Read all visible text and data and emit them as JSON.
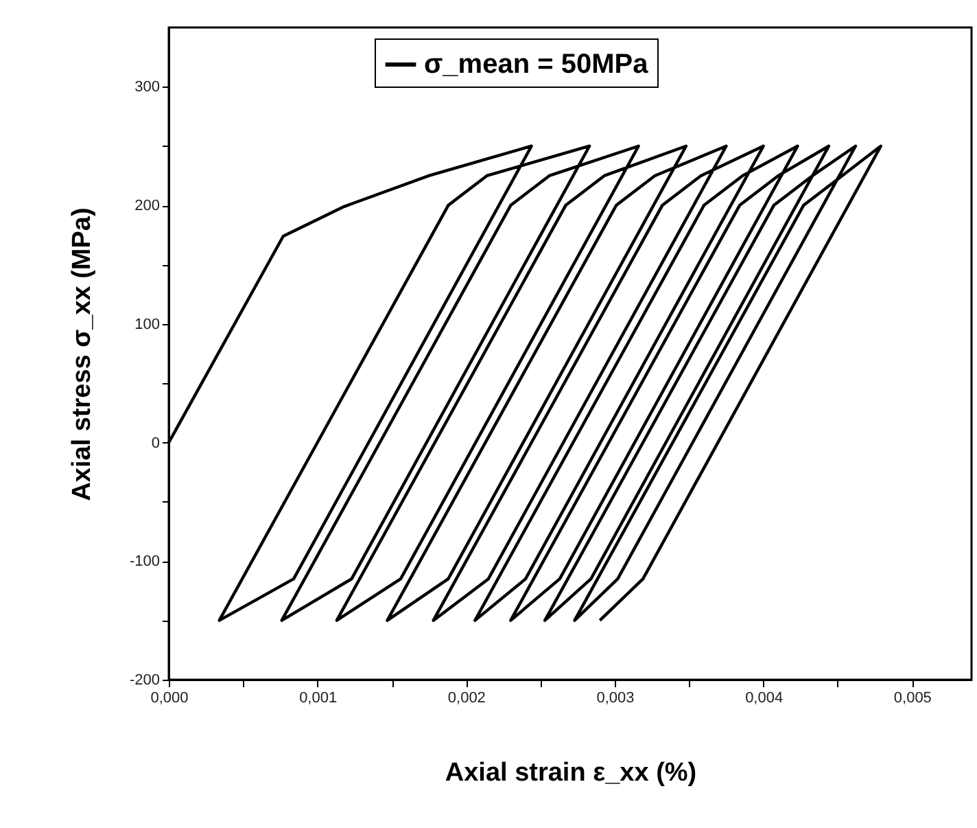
{
  "chart_data": {
    "type": "line",
    "xlabel": "Axial strain  ε_xx (%)",
    "ylabel": "Axial stress σ_xx  (MPa)",
    "xlim": [
      0,
      0.0054
    ],
    "ylim": [
      -200,
      350
    ],
    "xticks": [
      {
        "value": 0,
        "label": "0,000"
      },
      {
        "value": 0.0005,
        "label": null
      },
      {
        "value": 0.001,
        "label": "0,001"
      },
      {
        "value": 0.0015,
        "label": null
      },
      {
        "value": 0.002,
        "label": "0,002"
      },
      {
        "value": 0.0025,
        "label": null
      },
      {
        "value": 0.003,
        "label": "0,003"
      },
      {
        "value": 0.0035,
        "label": null
      },
      {
        "value": 0.004,
        "label": "0,004"
      },
      {
        "value": 0.0045,
        "label": null
      },
      {
        "value": 0.005,
        "label": "0,005"
      }
    ],
    "yticks": [
      -200,
      {
        "value": -150,
        "label": null
      },
      -100,
      {
        "value": -50,
        "label": null
      },
      0,
      {
        "value": 50,
        "label": null
      },
      100,
      {
        "value": 150,
        "label": null
      },
      200,
      {
        "value": 250,
        "label": null
      },
      300
    ],
    "grid": false,
    "legend": "top",
    "marker": "none",
    "line_style": "solid",
    "series": [
      {
        "name": "σ_mean = 50MPa",
        "color": "#000000",
        "x": [
          0,
          0.00077,
          0.00118,
          0.00175,
          0.00244,
          0.00084,
          0.00034,
          0.00188,
          0.00214,
          0.00283,
          0.00123,
          0.00076,
          0.0023,
          0.00256,
          0.00316,
          0.00156,
          0.00113,
          0.00267,
          0.00293,
          0.00348,
          0.00188,
          0.00147,
          0.00301,
          0.00327,
          0.00375,
          0.00215,
          0.00178,
          0.00332,
          0.00358,
          0.004,
          0.0024,
          0.00206,
          0.0036,
          0.00386,
          0.00423,
          0.00263,
          0.0023,
          0.00384,
          0.0041,
          0.00444,
          0.00284,
          0.00253,
          0.00407,
          0.00433,
          0.00462,
          0.00302,
          0.00273,
          0.00427,
          0.00453,
          0.00479,
          0.00319,
          0.0029
        ],
        "values": [
          0,
          174,
          199,
          225,
          250,
          -115,
          -150,
          200,
          225,
          250,
          -115,
          -150,
          200,
          225,
          250,
          -115,
          -150,
          200,
          225,
          250,
          -115,
          -150,
          200,
          225,
          250,
          -115,
          -150,
          200,
          225,
          250,
          -115,
          -150,
          200,
          225,
          250,
          -115,
          -150,
          200,
          225,
          250,
          -115,
          -150,
          200,
          225,
          250,
          -115,
          -150,
          200,
          225,
          250,
          -115,
          -150
        ]
      }
    ]
  }
}
